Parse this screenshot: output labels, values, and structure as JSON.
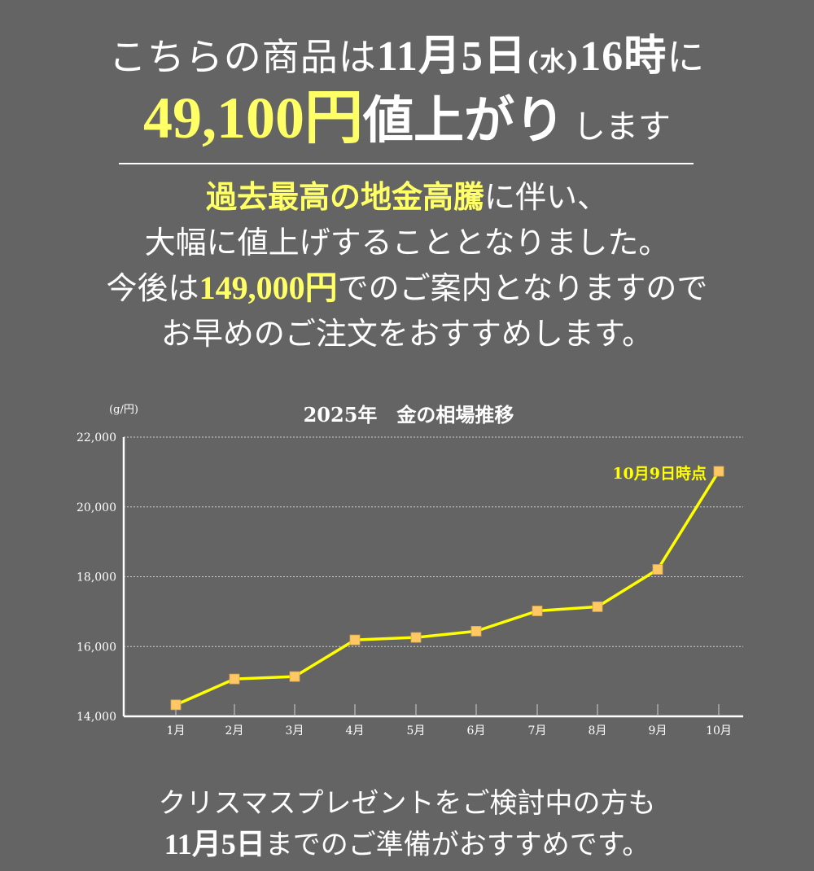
{
  "headline": {
    "line1_pre": "こちらの商品は",
    "line1_date": "11月5日",
    "line1_dow": "(水)",
    "line1_time": "16時",
    "line1_post": "に",
    "price_increase": "49,100円",
    "line2_big": "値上がり",
    "line2_small": "します"
  },
  "body": {
    "line1_highlight": "過去最高の地金高騰",
    "line1_rest": "に伴い、",
    "line2": "大幅に値上げすることとなりました。",
    "line3_pre": "今後は",
    "line3_price": "149,000円",
    "line3_post": "でのご案内となりますので",
    "line4": "お早めのご注文をおすすめします。"
  },
  "footer": {
    "line1": "クリスマスプレゼントをご検討中の方も",
    "line2_date": "11月5日",
    "line2_rest": "までのご準備がおすすめです。"
  },
  "colors": {
    "background": "#646464",
    "highlight": "#ffff66",
    "line": "#ffff00",
    "marker": "#ffc864",
    "text": "#ffffff"
  },
  "chart_data": {
    "type": "line",
    "title": "2025年　金の相場推移",
    "xlabel": "",
    "ylabel": "(g/円)",
    "categories": [
      "1月",
      "2月",
      "3月",
      "4月",
      "5月",
      "6月",
      "7月",
      "8月",
      "9月",
      "10月"
    ],
    "series": [
      {
        "name": "金の相場",
        "values": [
          14330,
          15070,
          15140,
          16190,
          16260,
          16440,
          17020,
          17140,
          18210,
          21020
        ]
      }
    ],
    "yticks": [
      14000,
      16000,
      18000,
      20000,
      22000
    ],
    "ytick_labels": [
      "14,000",
      "16,000",
      "18,000",
      "20,000",
      "22,000"
    ],
    "ylim": [
      14000,
      22000
    ],
    "grid": true,
    "annotations": [
      {
        "text": "10月9日時点",
        "category": "10月"
      }
    ]
  }
}
